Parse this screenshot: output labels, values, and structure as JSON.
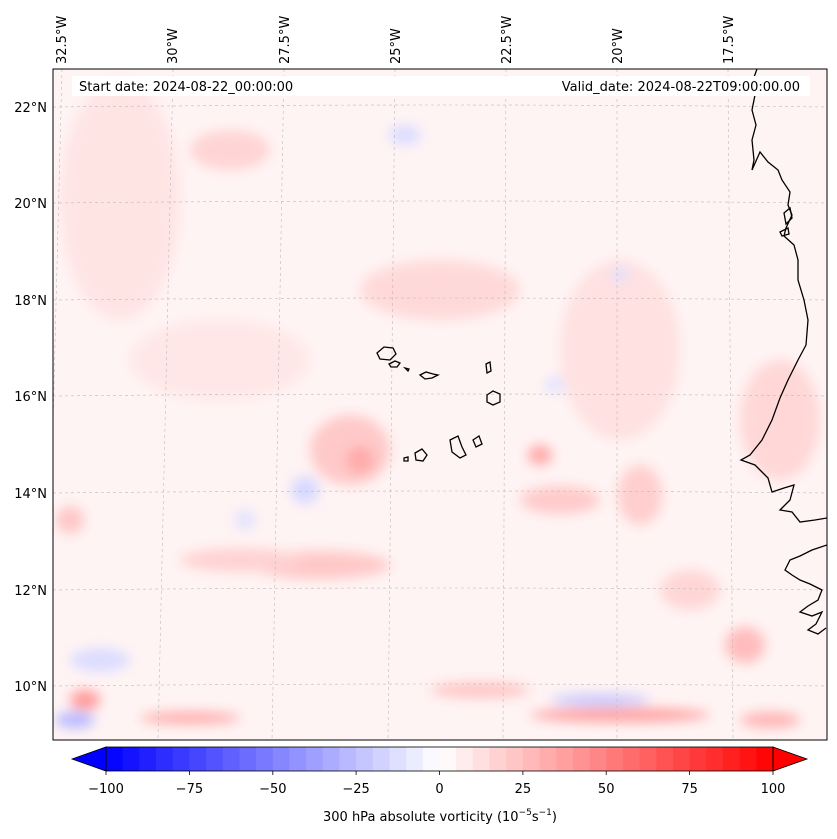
{
  "header": {
    "start_date": "Start date: 2024-08-22_00:00:00",
    "valid_date": "Valid_date: 2024-08-22T09:00:00.00"
  },
  "axes": {
    "lon_labels": [
      "32.5°W",
      "30°W",
      "27.5°W",
      "25°W",
      "22.5°W",
      "20°W",
      "17.5°W"
    ],
    "lat_labels": [
      "22°N",
      "20°N",
      "18°N",
      "16°N",
      "14°N",
      "12°N",
      "10°N"
    ]
  },
  "colorbar": {
    "ticks": [
      "−100",
      "−75",
      "−50",
      "−25",
      "0",
      "25",
      "50",
      "75",
      "100"
    ],
    "label_main": "300 hPa absolute vorticity (10",
    "label_exp1": "−5",
    "label_mid": "s",
    "label_exp2": "−1",
    "label_end": ")",
    "min_color": "#0000ff",
    "mid_color": "#ffffff",
    "max_color": "#ff0000"
  },
  "map": {
    "background_color": "#fff4f4",
    "coastline_color": "#000000",
    "gridline_color": "#bbbbbb",
    "features": [
      "Cape Verde islands",
      "West African coastline"
    ]
  }
}
